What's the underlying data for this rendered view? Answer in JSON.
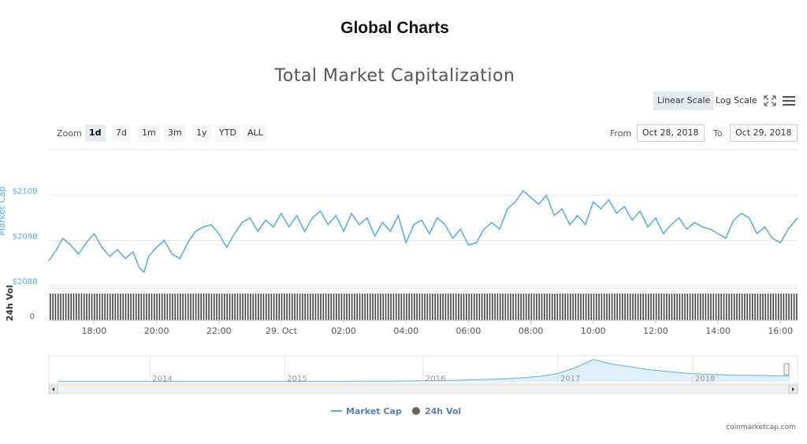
{
  "header": {
    "title": "Global Charts"
  },
  "toolbar": {
    "linear_label": "Linear Scale",
    "log_label": "Log Scale",
    "zoom_label": "Zoom",
    "zoom_buttons": [
      "1d",
      "7d",
      "1m",
      "3m",
      "1y",
      "YTD",
      "ALL"
    ],
    "zoom_active": "1d",
    "from_label": "From",
    "from_value": "Oct 28, 2018",
    "to_label": "To",
    "to_value": "Oct 29, 2018",
    "fullscreen_icon": "expand-icon",
    "menu_icon": "hamburger-menu-icon"
  },
  "chart_data": {
    "type": "line",
    "title": "Total Market Capitalization",
    "ylabel": "Market Cap",
    "ylim": [
      208000000000,
      210500000000
    ],
    "y_ticks": [
      "$208B",
      "$209B",
      "$210B"
    ],
    "y_tick_values": [
      208000000000,
      209000000000,
      210000000000
    ],
    "x_ticks": [
      "18:00",
      "20:00",
      "22:00",
      "29. Oct",
      "02:00",
      "04:00",
      "06:00",
      "08:00",
      "10:00",
      "12:00",
      "14:00",
      "16:00"
    ],
    "x_tick_hours": [
      18,
      20,
      22,
      24,
      26,
      28,
      30,
      32,
      34,
      36,
      38,
      40
    ],
    "x_range_hours": [
      16.55,
      40.55
    ],
    "grid": true,
    "legend": "bottom",
    "series": [
      {
        "name": "Market Cap",
        "color": "#5ab0e6",
        "x_hours": [
          16.55,
          16.8,
          17.0,
          17.25,
          17.5,
          17.75,
          18.0,
          18.25,
          18.5,
          18.75,
          19.0,
          19.25,
          19.45,
          19.6,
          19.75,
          20.0,
          20.25,
          20.5,
          20.75,
          21.0,
          21.25,
          21.5,
          21.75,
          22.0,
          22.25,
          22.5,
          22.75,
          23.0,
          23.25,
          23.5,
          23.75,
          24.0,
          24.25,
          24.5,
          24.75,
          25.0,
          25.25,
          25.5,
          25.75,
          26.0,
          26.25,
          26.5,
          26.75,
          27.0,
          27.25,
          27.5,
          27.75,
          28.0,
          28.25,
          28.5,
          28.75,
          29.0,
          29.25,
          29.5,
          29.75,
          30.0,
          30.25,
          30.5,
          30.75,
          31.0,
          31.25,
          31.5,
          31.75,
          32.0,
          32.25,
          32.5,
          32.75,
          33.0,
          33.25,
          33.5,
          33.75,
          34.0,
          34.25,
          34.5,
          34.75,
          35.0,
          35.25,
          35.5,
          35.75,
          36.0,
          36.25,
          36.5,
          36.75,
          37.0,
          37.25,
          37.5,
          37.75,
          38.0,
          38.25,
          38.5,
          38.75,
          39.0,
          39.25,
          39.5,
          39.75,
          40.0,
          40.25,
          40.55
        ],
        "values": [
          208550000000,
          208800000000,
          209050000000,
          208900000000,
          208700000000,
          208950000000,
          209150000000,
          208850000000,
          208650000000,
          208800000000,
          208600000000,
          208750000000,
          208400000000,
          208300000000,
          208650000000,
          208850000000,
          209000000000,
          208700000000,
          208600000000,
          208950000000,
          209200000000,
          209300000000,
          209350000000,
          209150000000,
          208850000000,
          209150000000,
          209400000000,
          209500000000,
          209200000000,
          209450000000,
          209300000000,
          209600000000,
          209300000000,
          209550000000,
          209200000000,
          209500000000,
          209650000000,
          209350000000,
          209550000000,
          209200000000,
          209600000000,
          209350000000,
          209500000000,
          209100000000,
          209400000000,
          209200000000,
          209550000000,
          208950000000,
          209350000000,
          209450000000,
          209150000000,
          209500000000,
          209350000000,
          209050000000,
          209250000000,
          208900000000,
          208950000000,
          209250000000,
          209400000000,
          209250000000,
          209700000000,
          209850000000,
          210100000000,
          209950000000,
          209800000000,
          210000000000,
          209550000000,
          209700000000,
          209350000000,
          209550000000,
          209350000000,
          209850000000,
          209700000000,
          209900000000,
          209600000000,
          209750000000,
          209450000000,
          209650000000,
          209300000000,
          209500000000,
          209150000000,
          209350000000,
          209500000000,
          209250000000,
          209400000000,
          209300000000,
          209250000000,
          209150000000,
          209050000000,
          209450000000,
          209600000000,
          209500000000,
          209150000000,
          209300000000,
          209050000000,
          208950000000,
          209250000000,
          209500000000
        ]
      },
      {
        "name": "24h Vol",
        "color": "#333333"
      }
    ],
    "volume_axis": {
      "label": "24h Vol",
      "ticks": [
        "0"
      ]
    },
    "navigator": {
      "years": [
        "2014",
        "2015",
        "2016",
        "2017",
        "2018"
      ],
      "year_fractions": [
        0.135,
        0.315,
        0.5,
        0.68,
        0.86
      ],
      "series_values": [
        0.02,
        0.02,
        0.02,
        0.02,
        0.02,
        0.02,
        0.02,
        0.02,
        0.02,
        0.02,
        0.02,
        0.02,
        0.02,
        0.02,
        0.02,
        0.02,
        0.02,
        0.03,
        0.03,
        0.03,
        0.04,
        0.05,
        0.06,
        0.08,
        0.1,
        0.13,
        0.17,
        0.23,
        0.35,
        0.6,
        0.95,
        0.75,
        0.65,
        0.52,
        0.45,
        0.38,
        0.33,
        0.3,
        0.28,
        0.27,
        0.26,
        0.25
      ]
    }
  },
  "footer": {
    "credit": "coinmarketcap.com"
  }
}
